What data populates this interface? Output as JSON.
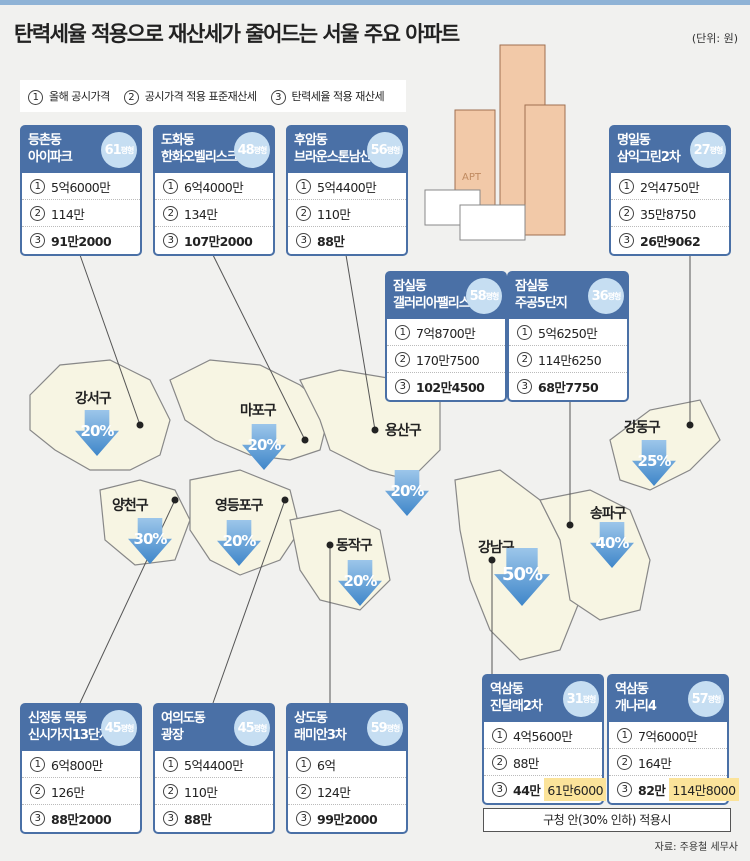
{
  "title": "탄력세율 적용으로 재산세가 줄어드는 서울 주요 아파트",
  "unit": "(단위: 원)",
  "legend": [
    {
      "n": "1",
      "label": "올해 공시가격"
    },
    {
      "n": "2",
      "label": "공시가격 적용 표준재산세"
    },
    {
      "n": "3",
      "label": "탄력세율 적용 재산세"
    }
  ],
  "cards": [
    {
      "dong": "등촌동",
      "apt": "아이파크",
      "size": "61",
      "unit": "평형",
      "v1": "5억6000만",
      "v2": "114만",
      "v3": "91만2000"
    },
    {
      "dong": "도화동",
      "apt": "한화오벨리스크",
      "size": "48",
      "unit": "평형",
      "v1": "6억4000만",
      "v2": "134만",
      "v3": "107만2000"
    },
    {
      "dong": "후암동",
      "apt": "브라운스톤남산",
      "size": "56",
      "unit": "평형",
      "v1": "5억4400만",
      "v2": "110만",
      "v3": "88만"
    },
    {
      "dong": "명일동",
      "apt": "삼익그린2차",
      "size": "27",
      "unit": "평형",
      "v1": "2억4750만",
      "v2": "35만8750",
      "v3": "26만9062"
    },
    {
      "dong": "잠실동",
      "apt": "갤러리아팰리스",
      "size": "58",
      "unit": "평형",
      "v1": "7억8700만",
      "v2": "170만7500",
      "v3": "102만4500"
    },
    {
      "dong": "잠실동",
      "apt": "주공5단지",
      "size": "36",
      "unit": "평형",
      "v1": "5억6250만",
      "v2": "114만6250",
      "v3": "68만7750"
    },
    {
      "dong": "신정동 목동",
      "apt": "신시가지13단지",
      "size": "45",
      "unit": "평형",
      "v1": "6억800만",
      "v2": "126만",
      "v3": "88만2000"
    },
    {
      "dong": "여의도동",
      "apt": "광장",
      "size": "45",
      "unit": "평형",
      "v1": "5억4400만",
      "v2": "110만",
      "v3": "88만"
    },
    {
      "dong": "상도동",
      "apt": "래미안3차",
      "size": "59",
      "unit": "평형",
      "v1": "6억",
      "v2": "124만",
      "v3": "99만2000"
    },
    {
      "dong": "역삼동",
      "apt": "진달래2차",
      "size": "31",
      "unit": "평형",
      "v1": "4억5600만",
      "v2": "88만",
      "v3": "44만",
      "v3alt": "61만6000"
    },
    {
      "dong": "역삼동",
      "apt": "개나리4",
      "size": "57",
      "unit": "평형",
      "v1": "7억6000만",
      "v2": "164만",
      "v3": "82만",
      "v3alt": "114만8000"
    }
  ],
  "districts": [
    {
      "name": "강서구",
      "rate": "20%"
    },
    {
      "name": "마포구",
      "rate": "20%"
    },
    {
      "name": "용산구",
      "rate": "20%"
    },
    {
      "name": "양천구",
      "rate": "30%"
    },
    {
      "name": "영등포구",
      "rate": "20%"
    },
    {
      "name": "동작구",
      "rate": "20%"
    },
    {
      "name": "강남구",
      "rate": "50%"
    },
    {
      "name": "송파구",
      "rate": "40%"
    },
    {
      "name": "강동구",
      "rate": "25%"
    }
  ],
  "illustration_text": "APT",
  "note": "구청 안(30% 인하) 적용시",
  "source": "자료: 주용철 세무사",
  "colors": {
    "header": "#4a70a6",
    "badge": "#c6def2",
    "arrow": "#3f86c9",
    "highlight": "#fbe39a",
    "map": "#f7f5e3"
  }
}
